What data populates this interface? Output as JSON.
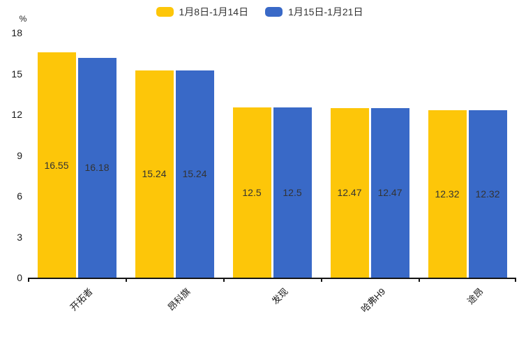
{
  "unit_label": "%",
  "colors": {
    "series1": "#FDC609",
    "series2": "#3969C7",
    "axis": "#141414",
    "value_label_text": "#333333",
    "background": "#ffffff"
  },
  "legend": [
    {
      "label": "1月8日-1月14日",
      "color": "#FDC609"
    },
    {
      "label": "1月15日-1月21日",
      "color": "#3969C7"
    }
  ],
  "chart_data": {
    "type": "bar",
    "title": "",
    "xlabel": "",
    "ylabel": "%",
    "categories": [
      "开拓者",
      "昂科旗",
      "发现",
      "哈弗H9",
      "途昂"
    ],
    "series": [
      {
        "name": "1月8日-1月14日",
        "color": "#FDC609",
        "values": [
          16.55,
          15.24,
          12.5,
          12.47,
          12.32
        ]
      },
      {
        "name": "1月15日-1月21日",
        "color": "#3969C7",
        "values": [
          16.18,
          15.24,
          12.5,
          12.47,
          12.32
        ]
      }
    ],
    "value_labels": [
      "16.55",
      "16.18",
      "15.24",
      "15.24",
      "12.5",
      "12.5",
      "12.47",
      "12.47",
      "12.32",
      "12.32"
    ],
    "ylim": [
      0,
      18
    ],
    "yticks": [
      0,
      3,
      6,
      9,
      12,
      15,
      18
    ],
    "grid": false,
    "legend_position": "top-center",
    "value_label_position": "inside-center",
    "xlabel_rotation_deg": -45
  }
}
